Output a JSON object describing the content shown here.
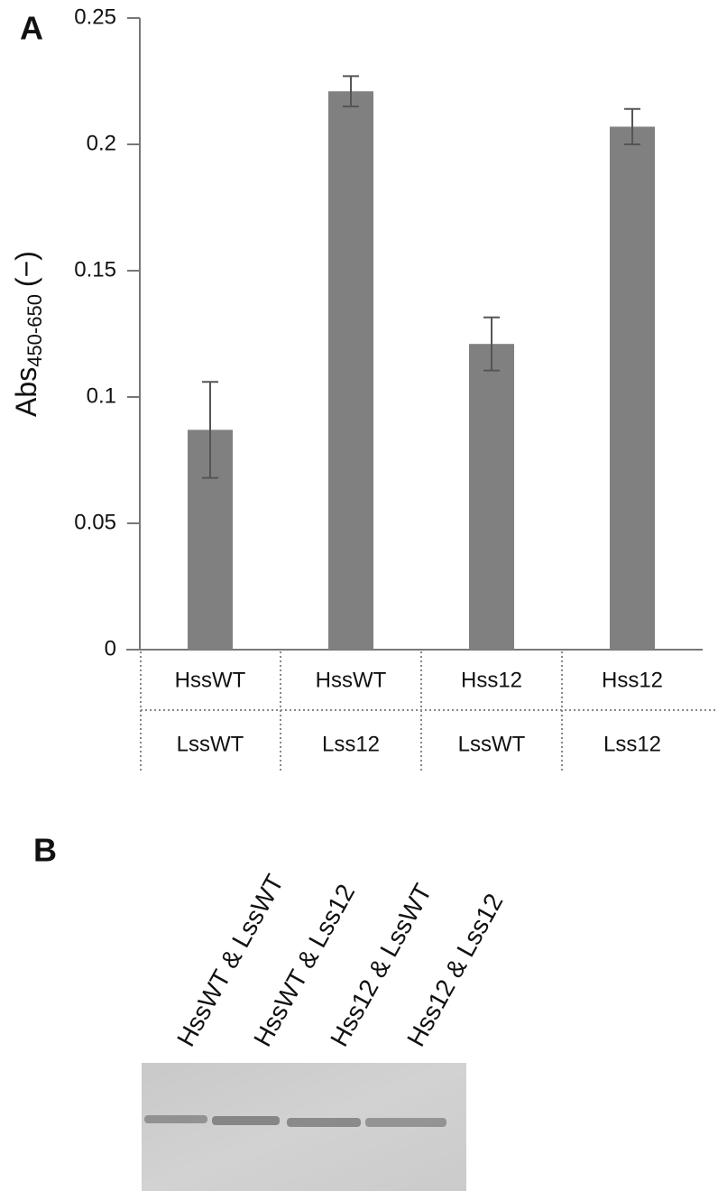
{
  "chart_data": {
    "type": "bar",
    "panel_label": "A",
    "ylabel": {
      "main": "Abs",
      "sub": "450-650",
      "unit": "(−)"
    },
    "categories": [
      [
        "HssWT",
        "LssWT"
      ],
      [
        "HssWT",
        "Lss12"
      ],
      [
        "Hss12",
        "LssWT"
      ],
      [
        "Hss12",
        "Lss12"
      ]
    ],
    "values": [
      0.087,
      0.221,
      0.121,
      0.207
    ],
    "errors": [
      0.019,
      0.006,
      0.0105,
      0.007
    ],
    "color": "#808080",
    "ylim": [
      0,
      0.25
    ],
    "yticks": [
      0,
      0.05,
      0.1,
      0.15,
      0.2,
      0.25
    ],
    "grid": false
  },
  "blot": {
    "panel_label": "B",
    "lanes": [
      "HssWT & LssWT",
      "HssWT & Lss12",
      "Hss12 & LssWT",
      "Hss12 & Lss12"
    ]
  }
}
